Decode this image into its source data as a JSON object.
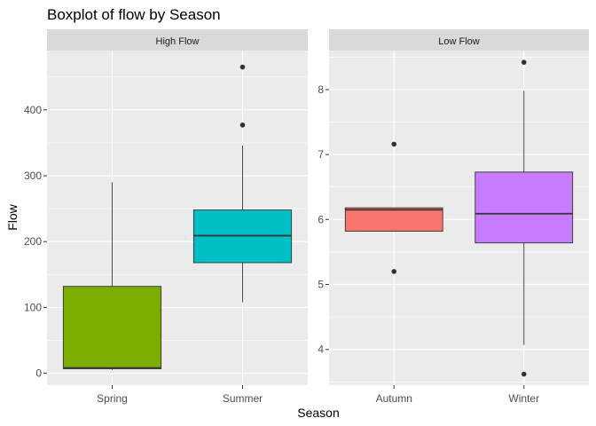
{
  "chart_data": {
    "type": "boxplot",
    "title": "Boxplot of flow by Season",
    "xlabel": "Season",
    "ylabel": "Flow",
    "grid": true,
    "legend": "none",
    "panels": [
      {
        "strip": "High Flow",
        "ylim": [
          -18,
          490
        ],
        "yticks": [
          0,
          100,
          200,
          300,
          400
        ],
        "categories": [
          "Spring",
          "Summer"
        ],
        "boxes": [
          {
            "category": "Spring",
            "color": "#7cae00",
            "whisker_low": 5,
            "q1": 7,
            "median": 8,
            "q3": 132,
            "whisker_high": 290,
            "outliers": []
          },
          {
            "category": "Summer",
            "color": "#00bfc4",
            "whisker_low": 108,
            "q1": 168,
            "median": 209,
            "q3": 248,
            "whisker_high": 346,
            "outliers": [
              377,
              465
            ]
          }
        ]
      },
      {
        "strip": "Low Flow",
        "ylim": [
          3.45,
          8.6
        ],
        "yticks": [
          4,
          5,
          6,
          7,
          8
        ],
        "categories": [
          "Autumn",
          "Winter"
        ],
        "boxes": [
          {
            "category": "Autumn",
            "color": "#f8766d",
            "whisker_low": 5.82,
            "q1": 5.82,
            "median": 6.15,
            "q3": 6.18,
            "whisker_high": 6.18,
            "outliers": [
              5.2,
              7.16
            ]
          },
          {
            "category": "Winter",
            "color": "#c77cff",
            "whisker_low": 4.07,
            "q1": 5.64,
            "median": 6.09,
            "q3": 6.73,
            "whisker_high": 7.98,
            "outliers": [
              3.62,
              8.42
            ]
          }
        ]
      }
    ]
  }
}
